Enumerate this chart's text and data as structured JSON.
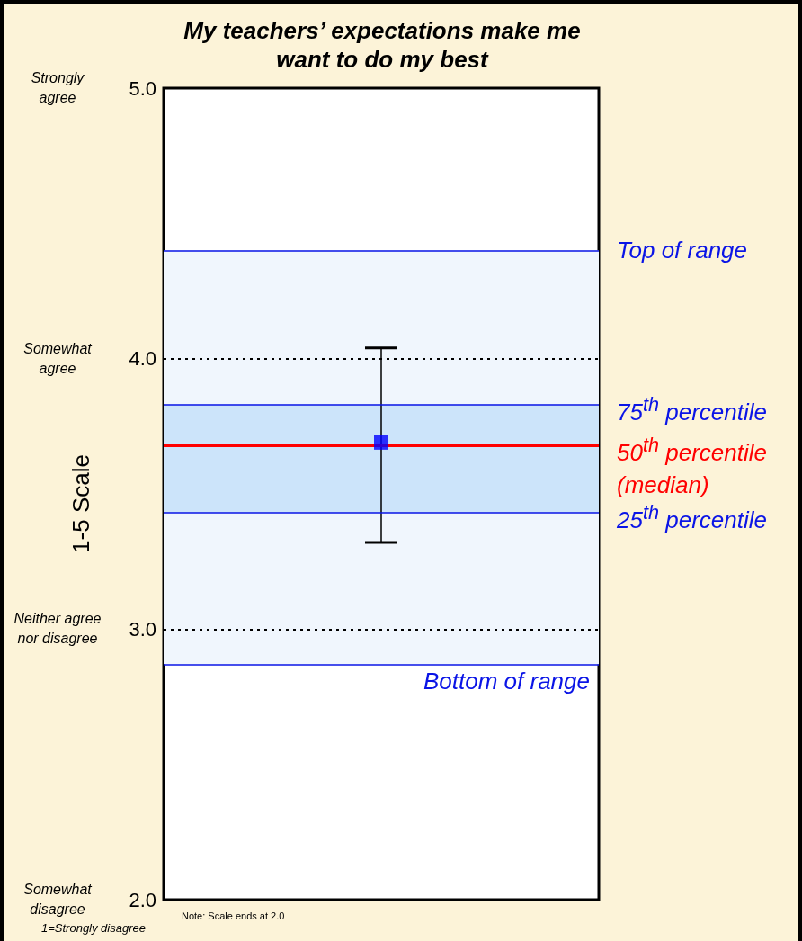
{
  "chart_data": {
    "type": "scatter",
    "title": "My teachers’ expectations make me want to do my best",
    "ylabel": "1-5 Scale",
    "categories": [
      null
    ],
    "series": [
      {
        "color": "#0000ff",
        "values": [
          3.69
        ],
        "errors": [
          [
            3.32,
            4.04
          ]
        ]
      }
    ],
    "marker": "square",
    "ylim": [
      2,
      5
    ],
    "yticks": [
      {
        "value": 2,
        "label": "2.0"
      },
      {
        "value": 3,
        "label": "3.0"
      },
      {
        "value": 4,
        "label": "4.0"
      },
      {
        "value": 5,
        "label": "5.0"
      }
    ],
    "grid": "y",
    "bands": [
      {
        "axis": "y",
        "from": 2.87,
        "to": 4.4,
        "color": "#f0f6fd"
      },
      {
        "axis": "y",
        "from": 3.43,
        "to": 3.83,
        "color": "#cce4fa"
      }
    ],
    "ref_lines": [
      {
        "axis": "y",
        "value": 4.4,
        "label": "Top of range",
        "color": "#0a14e6"
      },
      {
        "axis": "y",
        "value": 3.83,
        "label": "75$^{th}$ percentile",
        "color": "#0a14e6"
      },
      {
        "axis": "y",
        "value": 3.68,
        "label": "50$^{th}$ percentile (median)",
        "color": "#ff0000"
      },
      {
        "axis": "y",
        "value": 3.43,
        "label": "25$^{th}$ percentile",
        "color": "#0a14e6"
      },
      {
        "axis": "y",
        "value": 2.87,
        "label": "Bottom of range",
        "color": "#0a14e6"
      }
    ],
    "annotations": [
      "Strongly agree",
      "Somewhat agree",
      "Neither agree nor disagree",
      "Somewhat disagree",
      "Note: Scale ends at 2.0",
      "1=Strongly disagree"
    ]
  }
}
